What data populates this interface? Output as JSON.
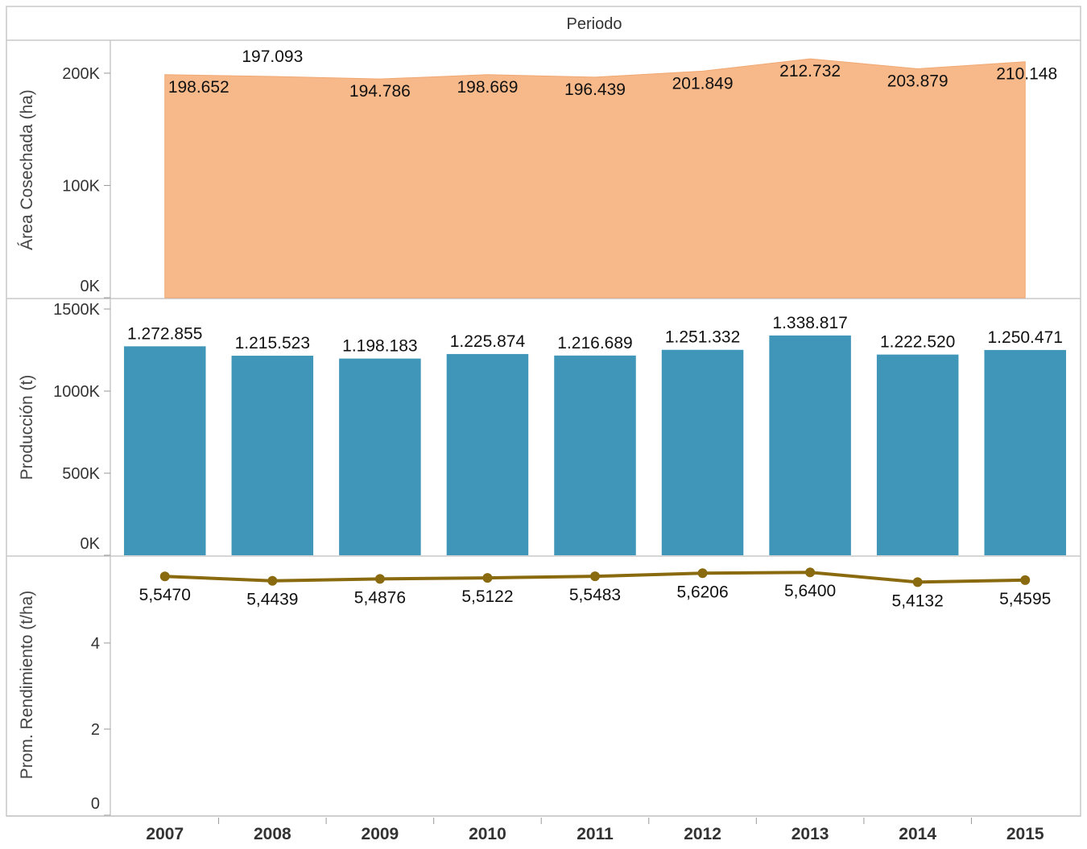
{
  "header": {
    "title": "Periodo"
  },
  "chart_data": [
    {
      "type": "area",
      "ylabel": "Área Cosechada (ha)",
      "categories": [
        "2007",
        "2008",
        "2009",
        "2010",
        "2011",
        "2012",
        "2013",
        "2014",
        "2015"
      ],
      "values": [
        198652,
        197093,
        194786,
        198669,
        196439,
        201849,
        212732,
        203879,
        210148
      ],
      "data_labels": [
        "198.652",
        "197.093",
        "194.786",
        "198.669",
        "196.439",
        "201.849",
        "212.732",
        "203.879",
        "210.148"
      ],
      "ylim": [
        0,
        220000
      ],
      "yticks": [
        0,
        100000,
        200000
      ],
      "ytick_labels": [
        "0K",
        "100K",
        "200K"
      ],
      "color": "#f7b88a"
    },
    {
      "type": "bar",
      "ylabel": "Producción (t)",
      "categories": [
        "2007",
        "2008",
        "2009",
        "2010",
        "2011",
        "2012",
        "2013",
        "2014",
        "2015"
      ],
      "values": [
        1272855,
        1215523,
        1198183,
        1225874,
        1216689,
        1251332,
        1338817,
        1222520,
        1250471
      ],
      "data_labels": [
        "1.272.855",
        "1.215.523",
        "1.198.183",
        "1.225.874",
        "1.216.689",
        "1.251.332",
        "1.338.817",
        "1.222.520",
        "1.250.471"
      ],
      "ylim": [
        0,
        1500000
      ],
      "yticks": [
        0,
        500000,
        1000000,
        1500000
      ],
      "ytick_labels": [
        "0K",
        "500K",
        "1000K",
        "1500K"
      ],
      "color": "#3f96b9"
    },
    {
      "type": "line",
      "ylabel": "Prom. Rendimiento (t/ha)",
      "categories": [
        "2007",
        "2008",
        "2009",
        "2010",
        "2011",
        "2012",
        "2013",
        "2014",
        "2015"
      ],
      "values": [
        5.547,
        5.4439,
        5.4876,
        5.5122,
        5.5483,
        5.6206,
        5.64,
        5.4132,
        5.4595
      ],
      "data_labels": [
        "5,5470",
        "5,4439",
        "5,4876",
        "5,5122",
        "5,5483",
        "5,6206",
        "5,6400",
        "5,4132",
        "5,4595"
      ],
      "ylim": [
        0,
        5.85
      ],
      "yticks": [
        0,
        2,
        4
      ],
      "ytick_labels": [
        "0",
        "2",
        "4"
      ],
      "color": "#8a6a0f"
    }
  ],
  "x_axis": {
    "labels": [
      "2007",
      "2008",
      "2009",
      "2010",
      "2011",
      "2012",
      "2013",
      "2014",
      "2015"
    ]
  }
}
